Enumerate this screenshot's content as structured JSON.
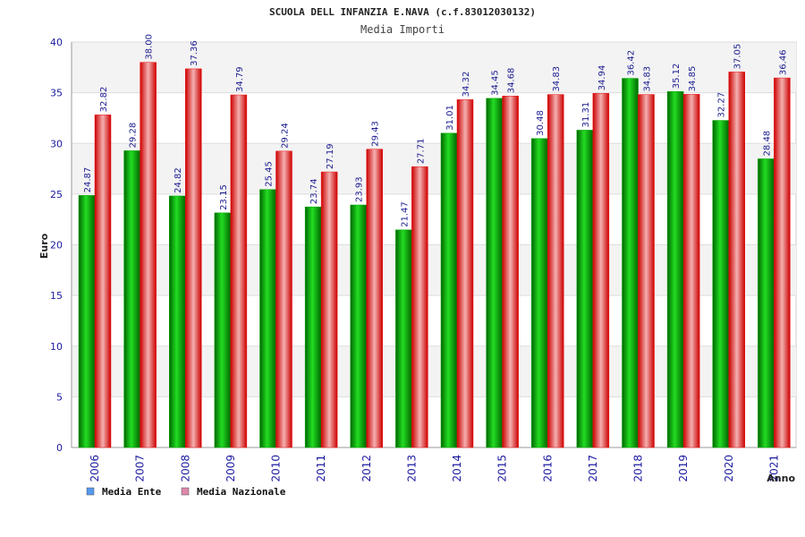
{
  "chart_data": {
    "type": "bar",
    "title": "SCUOLA DELL INFANZIA E.NAVA (c.f.83012030132)",
    "subtitle": "Media Importi",
    "xlabel": "Anno",
    "ylabel": "Euro",
    "ylim": [
      0,
      40
    ],
    "yticks": [
      0,
      5,
      10,
      15,
      20,
      25,
      30,
      35,
      40
    ],
    "grid": true,
    "legend_position": "bottom-left",
    "categories": [
      "2006",
      "2007",
      "2008",
      "2009",
      "2010",
      "2011",
      "2012",
      "2013",
      "2014",
      "2015",
      "2016",
      "2017",
      "2018",
      "2019",
      "2020",
      "2021"
    ],
    "series": [
      {
        "name": "Media Ente",
        "color": "#00aa00",
        "legend_color": "#5599ee",
        "values": [
          24.87,
          29.28,
          24.82,
          23.15,
          25.45,
          23.74,
          23.93,
          21.47,
          31.01,
          34.45,
          30.48,
          31.31,
          36.42,
          35.12,
          32.27,
          28.48
        ],
        "labels": [
          "24.87",
          "29.28",
          "24.82",
          "23.15",
          "25.45",
          "23.74",
          "23.93",
          "21.47",
          "31.01",
          "34.45",
          "30.48",
          "31.31",
          "36.42",
          "35.12",
          "32.27",
          "28.48"
        ]
      },
      {
        "name": "Media Nazionale",
        "color": "#ee1111",
        "legend_color": "#dd88aa",
        "values": [
          32.82,
          38.0,
          37.36,
          34.79,
          29.24,
          27.19,
          29.43,
          27.71,
          34.32,
          34.68,
          34.83,
          34.94,
          34.83,
          34.85,
          37.05,
          36.46
        ],
        "labels": [
          "32.82",
          "38.00",
          "37.36",
          "34.79",
          "29.24",
          "27.19",
          "29.43",
          "27.71",
          "34.32",
          "34.68",
          "34.83",
          "34.94",
          "34.83",
          "34.85",
          "37.05",
          "36.46"
        ]
      }
    ]
  }
}
